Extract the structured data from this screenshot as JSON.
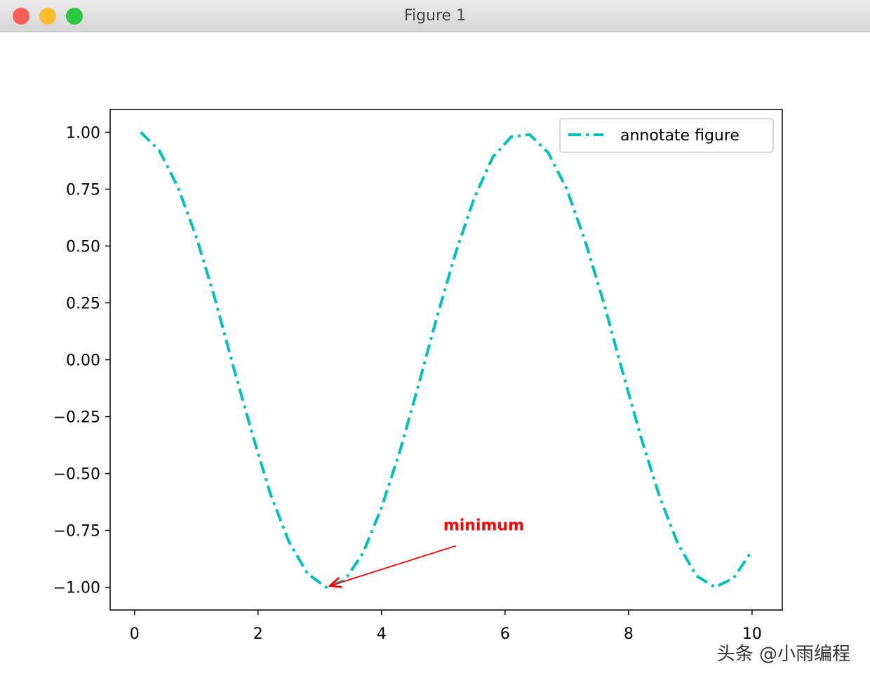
{
  "window": {
    "title": "Figure 1"
  },
  "chart_data": {
    "type": "line",
    "x": [
      0.1,
      0.4,
      0.7,
      1.0,
      1.3,
      1.6,
      1.9,
      2.2,
      2.5,
      2.8,
      3.1,
      3.4,
      3.7,
      4.0,
      4.3,
      4.6,
      4.9,
      5.2,
      5.5,
      5.8,
      6.1,
      6.4,
      6.7,
      7.0,
      7.3,
      7.6,
      7.9,
      8.2,
      8.5,
      8.8,
      9.1,
      9.4,
      9.7,
      10.0
    ],
    "series": [
      {
        "name": "annotate figure",
        "color": "#00bfbf",
        "linestyle": "dashdot",
        "values": [
          1.0,
          0.92,
          0.76,
          0.54,
          0.27,
          -0.03,
          -0.32,
          -0.59,
          -0.8,
          -0.94,
          -1.0,
          -0.97,
          -0.85,
          -0.65,
          -0.4,
          -0.11,
          0.19,
          0.47,
          0.71,
          0.89,
          0.98,
          0.99,
          0.91,
          0.75,
          0.52,
          0.25,
          -0.05,
          -0.34,
          -0.6,
          -0.81,
          -0.95,
          -1.0,
          -0.96,
          -0.84
        ]
      }
    ],
    "xlim": [
      -0.395,
      10.49
    ],
    "ylim": [
      -1.1,
      1.1
    ],
    "xticks": [
      0,
      2,
      4,
      6,
      8,
      10
    ],
    "yticks": [
      {
        "value": 1,
        "label": "1.00"
      },
      {
        "value": 0.75,
        "label": "0.75"
      },
      {
        "value": 0.5,
        "label": "0.50"
      },
      {
        "value": 0.25,
        "label": "0.25"
      },
      {
        "value": 0,
        "label": "0.00"
      },
      {
        "value": -0.25,
        "label": "−0.25"
      },
      {
        "value": -0.5,
        "label": "−0.50"
      },
      {
        "value": -0.75,
        "label": "−0.75"
      },
      {
        "value": -1,
        "label": "−1.00"
      }
    ],
    "legend": "upper right",
    "annotations": [
      {
        "text": "minimum",
        "xy": [
          3.14,
          -1
        ],
        "xytext": [
          5,
          -0.75
        ],
        "color": "red"
      }
    ]
  },
  "watermark": "头条 @小雨编程"
}
